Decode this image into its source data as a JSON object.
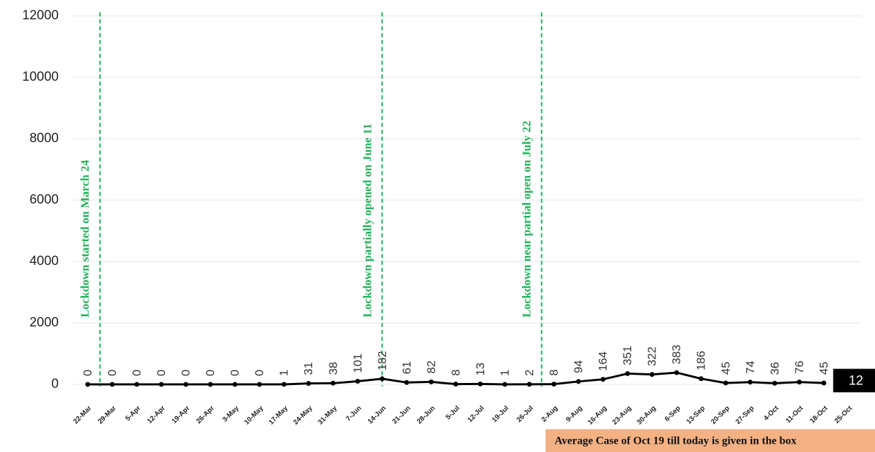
{
  "chart_data": {
    "type": "line",
    "categories": [
      "22-Mar",
      "29-Mar",
      "5-Apr",
      "12-Apr",
      "19-Apr",
      "26-Apr",
      "3-May",
      "10-May",
      "17-May",
      "24-May",
      "31-May",
      "7-Jun",
      "14-Jun",
      "21-Jun",
      "28-Jun",
      "5-Jul",
      "12-Jul",
      "19-Jul",
      "26-Jul",
      "2-Aug",
      "9-Aug",
      "16-Aug",
      "23-Aug",
      "30-Aug",
      "6-Sep",
      "13-Sep",
      "20-Sep",
      "27-Sep",
      "4-Oct",
      "11-Oct",
      "18-Oct",
      "25-Oct"
    ],
    "series": [
      {
        "color": "#000000",
        "values": [
          0,
          0,
          0,
          0,
          0,
          0,
          0,
          0,
          1,
          31,
          38,
          101,
          182,
          61,
          82,
          8,
          13,
          1,
          2,
          8,
          94,
          164,
          351,
          322,
          383,
          186,
          45,
          74,
          36,
          76,
          45,
          12
        ]
      }
    ],
    "boxed_last": true,
    "ylim": [
      0,
      12000
    ],
    "yticks": [
      0,
      2000,
      4000,
      6000,
      8000,
      10000,
      12000
    ],
    "grid": true,
    "annotations": [
      {
        "text": "Lockdown started on March 24",
        "at": 0.5
      },
      {
        "text": "Lockdown  partially  opened on June 11",
        "at": 12
      },
      {
        "text": "Lockdown near partial open on July 22",
        "at": 18.5
      }
    ],
    "note": "Average Case of Oct 19 till today is given in the box"
  }
}
